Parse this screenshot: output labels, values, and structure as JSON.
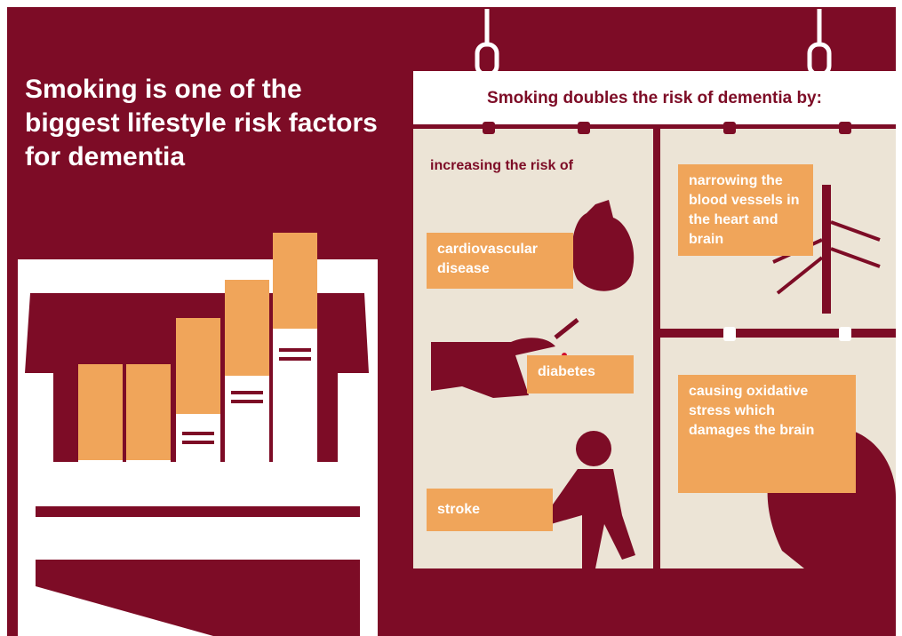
{
  "header": {
    "title": "Smoking is one of the biggest lifestyle risk factors for dementia"
  },
  "banner": {
    "title": "Smoking doubles the risk of dementia by:"
  },
  "panels": [
    {
      "heading": "increasing the risk of",
      "items": [
        "cardiovascular disease",
        "diabetes",
        "stroke"
      ]
    },
    {
      "text": "narrowing the blood vessels in the heart and brain"
    },
    {
      "text": "causing oxidative stress which damages the brain"
    }
  ]
}
